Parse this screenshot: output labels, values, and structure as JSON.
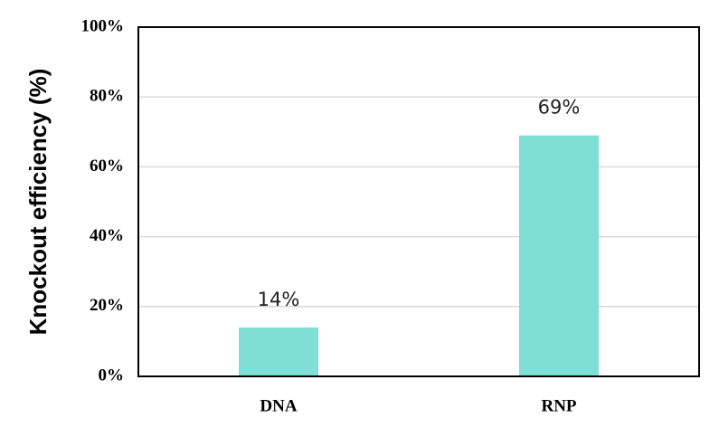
{
  "chart_data": {
    "type": "bar",
    "y_label": "Knockout efficiency (%)",
    "categories": [
      "DNA",
      "RNP"
    ],
    "values": [
      14,
      69
    ],
    "value_labels": [
      "14%",
      "69%"
    ],
    "color": "#7fded6",
    "ylim": [
      0,
      100
    ],
    "yticks": [
      {
        "value": 0,
        "label": "0%"
      },
      {
        "value": 20,
        "label": "20%"
      },
      {
        "value": 40,
        "label": "40%"
      },
      {
        "value": 60,
        "label": "60%"
      },
      {
        "value": 80,
        "label": "80%"
      },
      {
        "value": 100,
        "label": "100%"
      }
    ],
    "grid": true
  }
}
